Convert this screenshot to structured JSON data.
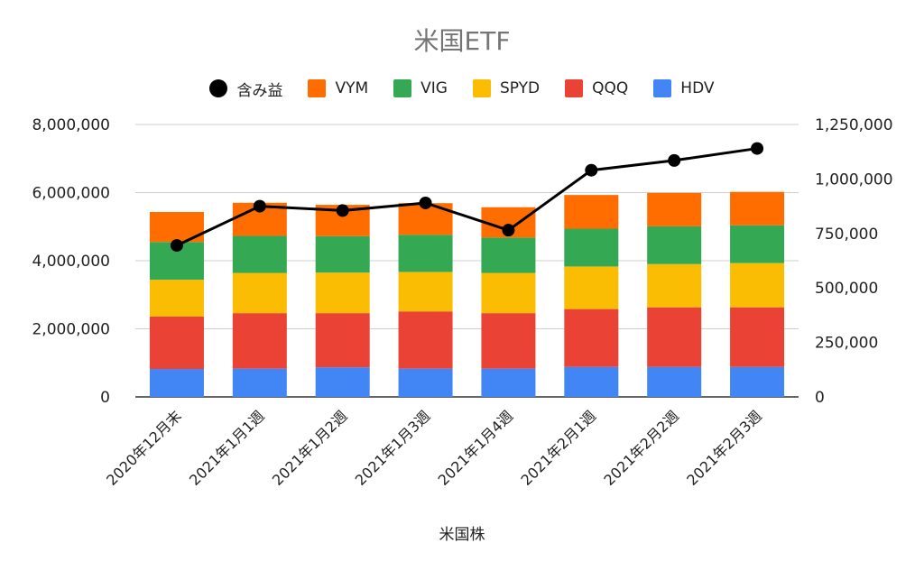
{
  "chart_data": {
    "type": "bar",
    "stacked": true,
    "title": "米国ETF",
    "xlabel": "米国株",
    "ylabel": "",
    "categories": [
      "2020年12月末",
      "2021年1月1週",
      "2021年1月2週",
      "2021年1月3週",
      "2021年1月4週",
      "2021年2月1週",
      "2021年2月2週",
      "2021年2月3週"
    ],
    "ylim": [
      0,
      8000000
    ],
    "yticks": [
      "0",
      "2,000,000",
      "4,000,000",
      "6,000,000",
      "8,000,000"
    ],
    "y2lim": [
      0,
      1250000
    ],
    "y2ticks": [
      "0",
      "250,000",
      "500,000",
      "750,000",
      "1,000,000",
      "1,250,000"
    ],
    "grid": true,
    "legend_position": "top",
    "legend_order": [
      "含み益",
      "VYM",
      "VIG",
      "SPYD",
      "QQQ",
      "HDV"
    ],
    "series": [
      {
        "name": "HDV",
        "color": "#4285F4",
        "values": [
          820000,
          830000,
          870000,
          830000,
          830000,
          880000,
          880000,
          880000
        ]
      },
      {
        "name": "QQQ",
        "color": "#EA4335",
        "values": [
          1540000,
          1630000,
          1590000,
          1680000,
          1630000,
          1700000,
          1750000,
          1750000
        ]
      },
      {
        "name": "SPYD",
        "color": "#FBBC04",
        "values": [
          1080000,
          1180000,
          1190000,
          1160000,
          1180000,
          1250000,
          1270000,
          1300000
        ]
      },
      {
        "name": "VIG",
        "color": "#34A853",
        "values": [
          1110000,
          1090000,
          1070000,
          1090000,
          1040000,
          1110000,
          1110000,
          1110000
        ]
      },
      {
        "name": "VYM",
        "color": "#FF6D01",
        "values": [
          880000,
          970000,
          920000,
          930000,
          890000,
          990000,
          980000,
          980000
        ]
      }
    ],
    "line_series": {
      "name": "含み益",
      "color": "#000000",
      "axis": "right",
      "values": [
        695000,
        875000,
        855000,
        890000,
        765000,
        1040000,
        1085000,
        1140000
      ]
    }
  }
}
